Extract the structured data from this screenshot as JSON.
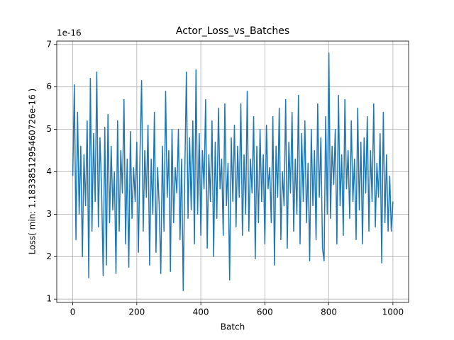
{
  "chart_data": {
    "type": "line",
    "title": "Actor_Loss_vs_Batches",
    "xlabel": "Batch",
    "ylabel": "Loss( min: 1.1833851295460726e-16 )",
    "y_offset_label": "1e-16",
    "color": "#1f77b4",
    "grid": true,
    "xlim": [
      -50,
      1049
    ],
    "ylim": [
      0.92,
      7.08
    ],
    "xticks": [
      0,
      200,
      400,
      600,
      800,
      1000
    ],
    "yticks": [
      1,
      2,
      3,
      4,
      5,
      6,
      7
    ],
    "x": [
      0,
      5,
      10,
      15,
      20,
      25,
      30,
      35,
      40,
      45,
      50,
      55,
      60,
      65,
      70,
      75,
      80,
      85,
      90,
      95,
      100,
      105,
      110,
      115,
      120,
      125,
      130,
      135,
      140,
      145,
      150,
      155,
      160,
      165,
      170,
      175,
      180,
      185,
      190,
      195,
      200,
      205,
      210,
      215,
      220,
      225,
      230,
      235,
      240,
      245,
      250,
      255,
      260,
      265,
      270,
      275,
      280,
      285,
      290,
      295,
      300,
      305,
      310,
      315,
      320,
      325,
      330,
      335,
      340,
      345,
      350,
      355,
      360,
      365,
      370,
      375,
      380,
      385,
      390,
      395,
      400,
      405,
      410,
      415,
      420,
      425,
      430,
      435,
      440,
      445,
      450,
      455,
      460,
      465,
      470,
      475,
      480,
      485,
      490,
      495,
      500,
      505,
      510,
      515,
      520,
      525,
      530,
      535,
      540,
      545,
      550,
      555,
      560,
      565,
      570,
      575,
      580,
      585,
      590,
      595,
      600,
      605,
      610,
      615,
      620,
      625,
      630,
      635,
      640,
      645,
      650,
      655,
      660,
      665,
      670,
      675,
      680,
      685,
      690,
      695,
      700,
      705,
      710,
      715,
      720,
      725,
      730,
      735,
      740,
      745,
      750,
      755,
      760,
      765,
      770,
      775,
      780,
      785,
      790,
      795,
      800,
      805,
      810,
      815,
      820,
      825,
      830,
      835,
      840,
      845,
      850,
      855,
      860,
      865,
      870,
      875,
      880,
      885,
      890,
      895,
      900,
      905,
      910,
      915,
      920,
      925,
      930,
      935,
      940,
      945,
      950,
      955,
      960,
      965,
      970,
      975,
      980,
      985,
      990,
      995,
      1000
    ],
    "values": [
      3.9,
      6.05,
      2.4,
      5.4,
      3.0,
      4.6,
      2.0,
      4.4,
      3.2,
      5.2,
      1.5,
      6.2,
      2.6,
      4.9,
      3.3,
      6.35,
      2.7,
      4.8,
      3.6,
      1.55,
      5.05,
      1.8,
      5.35,
      2.8,
      4.6,
      3.1,
      4.0,
      1.6,
      5.2,
      2.6,
      4.5,
      3.5,
      5.7,
      2.3,
      4.3,
      1.75,
      4.95,
      2.9,
      4.1,
      3.3,
      4.7,
      2.1,
      4.4,
      6.15,
      2.6,
      4.5,
      3.4,
      5.1,
      1.8,
      4.3,
      3.0,
      5.4,
      2.1,
      4.1,
      3.2,
      1.6,
      4.6,
      2.6,
      5.9,
      3.4,
      4.5,
      1.65,
      5.0,
      2.8,
      4.1,
      3.5,
      5.0,
      2.4,
      4.3,
      1.2,
      4.0,
      6.35,
      2.9,
      4.8,
      3.1,
      5.2,
      2.3,
      6.4,
      3.0,
      4.9,
      2.5,
      4.5,
      3.6,
      5.7,
      2.2,
      4.4,
      3.3,
      5.2,
      2.0,
      4.7,
      2.9,
      5.5,
      3.6,
      4.3,
      2.5,
      5.6,
      3.2,
      4.2,
      1.45,
      4.8,
      3.3,
      5.1,
      2.7,
      4.6,
      3.4,
      5.6,
      2.5,
      4.4,
      3.0,
      5.9,
      2.6,
      4.3,
      3.5,
      5.3,
      1.95,
      4.6,
      2.8,
      5.0,
      3.3,
      4.4,
      2.3,
      5.1,
      3.6,
      4.1,
      2.8,
      5.3,
      1.8,
      4.6,
      3.4,
      5.5,
      2.4,
      4.0,
      3.2,
      5.7,
      2.2,
      4.7,
      3.5,
      5.4,
      2.6,
      4.3,
      3.0,
      5.8,
      2.3,
      4.9,
      3.3,
      5.2,
      2.8,
      4.2,
      1.9,
      5.0,
      3.2,
      4.5,
      2.4,
      5.6,
      3.4,
      4.8,
      2.2,
      1.9,
      5.3,
      3.0,
      6.8,
      2.9,
      4.6,
      3.7,
      5.0,
      2.3,
      5.8,
      3.2,
      4.4,
      2.5,
      5.7,
      3.6,
      4.5,
      2.9,
      5.2,
      3.3,
      4.3,
      2.4,
      5.5,
      3.1,
      4.7,
      2.3,
      4.8,
      3.5,
      5.3,
      2.6,
      4.5,
      3.3,
      5.6,
      2.7,
      4.2,
      3.4,
      4.9,
      1.85,
      5.4,
      2.8,
      4.4,
      2.6,
      3.9,
      2.6,
      3.3
    ]
  }
}
